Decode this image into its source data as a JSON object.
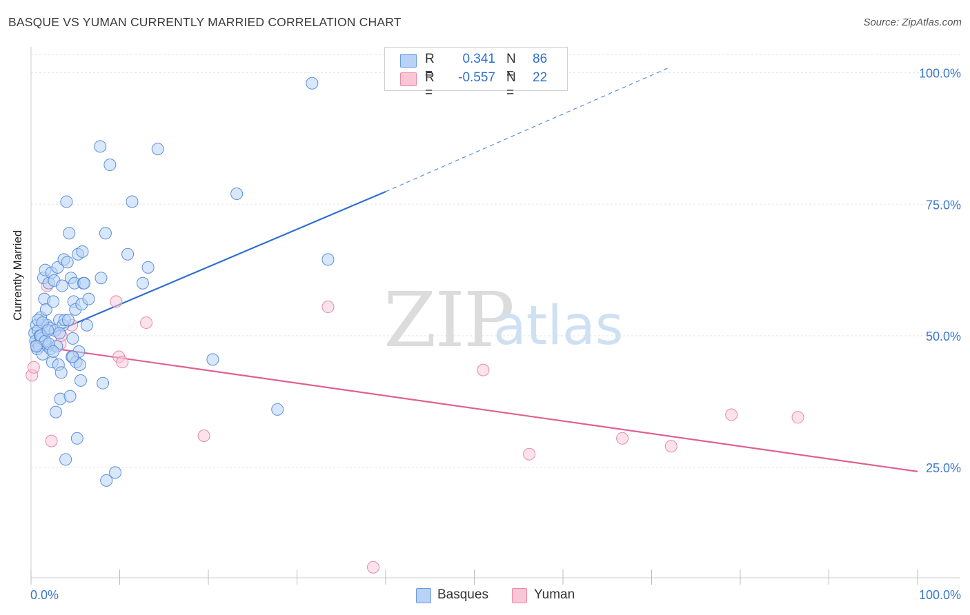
{
  "header": {
    "title": "BASQUE VS YUMAN CURRENTLY MARRIED CORRELATION CHART",
    "source": "Source: ZipAtlas.com"
  },
  "legend": {
    "r_label": "R =",
    "n_label": "N =",
    "series": [
      {
        "name": "Basques",
        "r": "0.341",
        "n": "86",
        "fill": "#b8d3f5",
        "stroke": "#6a9be0"
      },
      {
        "name": "Yuman",
        "r": "-0.557",
        "n": "22",
        "fill": "#f9c6d6",
        "stroke": "#e889a8"
      }
    ]
  },
  "watermark": {
    "zip": "ZIP",
    "atlas": "atlas"
  },
  "chart_data": {
    "type": "scatter",
    "title": "BASQUE VS YUMAN CURRENTLY MARRIED CORRELATION CHART",
    "xlabel": "",
    "ylabel": "Currently Married",
    "xlim": [
      0,
      100
    ],
    "ylim": [
      4,
      104
    ],
    "x_tick_labels": [
      "0.0%",
      "100.0%"
    ],
    "y_ticks": [
      25,
      50,
      75,
      100
    ],
    "y_tick_labels": [
      "25.0%",
      "50.0%",
      "75.0%",
      "100.0%"
    ],
    "grid": true,
    "colors": {
      "basques": "#2f6fd0",
      "yuman": "#e0608f",
      "tick_text": "#3a78d0"
    },
    "series": [
      {
        "name": "Basques",
        "trend": {
          "x1": 0,
          "y1": 48.8,
          "x2": 40,
          "y2": 77.4,
          "dash_to_x": 72,
          "dash_to_y": 101
        },
        "points": [
          [
            0.4,
            50.5
          ],
          [
            0.5,
            49
          ],
          [
            0.6,
            52
          ],
          [
            0.7,
            47.5
          ],
          [
            0.8,
            51
          ],
          [
            0.9,
            48
          ],
          [
            1.0,
            50
          ],
          [
            1.1,
            53.5
          ],
          [
            1.2,
            49.5
          ],
          [
            1.3,
            46.5
          ],
          [
            1.4,
            61
          ],
          [
            1.5,
            57
          ],
          [
            1.6,
            62.5
          ],
          [
            1.7,
            55
          ],
          [
            1.8,
            52
          ],
          [
            1.9,
            48
          ],
          [
            2.0,
            60
          ],
          [
            2.1,
            51.5
          ],
          [
            2.2,
            47.5
          ],
          [
            2.3,
            62
          ],
          [
            2.4,
            45
          ],
          [
            2.5,
            56.5
          ],
          [
            2.6,
            60.5
          ],
          [
            2.7,
            51
          ],
          [
            2.8,
            35.5
          ],
          [
            2.9,
            48
          ],
          [
            3.0,
            63
          ],
          [
            3.1,
            44.5
          ],
          [
            3.2,
            53
          ],
          [
            3.3,
            38
          ],
          [
            3.4,
            43
          ],
          [
            3.5,
            59.5
          ],
          [
            3.6,
            52
          ],
          [
            3.7,
            64.5
          ],
          [
            3.8,
            53
          ],
          [
            3.9,
            26.5
          ],
          [
            4.0,
            75.5
          ],
          [
            4.1,
            64
          ],
          [
            4.2,
            53
          ],
          [
            4.3,
            69.5
          ],
          [
            4.4,
            38.5
          ],
          [
            4.5,
            61
          ],
          [
            4.6,
            46
          ],
          [
            4.7,
            49.5
          ],
          [
            4.8,
            56.5
          ],
          [
            4.9,
            60
          ],
          [
            5.0,
            55
          ],
          [
            5.1,
            45
          ],
          [
            5.2,
            30.5
          ],
          [
            5.3,
            65.5
          ],
          [
            5.4,
            47
          ],
          [
            5.5,
            44.5
          ],
          [
            5.6,
            41.5
          ],
          [
            5.7,
            56
          ],
          [
            5.8,
            66
          ],
          [
            5.9,
            60
          ],
          [
            6.0,
            60
          ],
          [
            6.3,
            52
          ],
          [
            6.5,
            57
          ],
          [
            7.8,
            86
          ],
          [
            7.9,
            61
          ],
          [
            8.1,
            41
          ],
          [
            8.4,
            69.5
          ],
          [
            8.5,
            22.5
          ],
          [
            8.9,
            82.5
          ],
          [
            9.5,
            24
          ],
          [
            10.9,
            65.5
          ],
          [
            11.4,
            75.5
          ],
          [
            12.6,
            60
          ],
          [
            13.2,
            63
          ],
          [
            14.3,
            85.5
          ],
          [
            20.5,
            45.5
          ],
          [
            23.2,
            77
          ],
          [
            27.8,
            36
          ],
          [
            31.7,
            98
          ],
          [
            33.5,
            64.5
          ],
          [
            1.1,
            50
          ],
          [
            1.6,
            49
          ],
          [
            2.0,
            48.5
          ],
          [
            0.8,
            53
          ],
          [
            1.3,
            52.5
          ],
          [
            2.5,
            47
          ],
          [
            1.9,
            51
          ],
          [
            3.2,
            50.5
          ],
          [
            0.6,
            48
          ],
          [
            4.7,
            46
          ]
        ]
      },
      {
        "name": "Yuman",
        "trend": {
          "x1": 0,
          "y1": 48.2,
          "x2": 100,
          "y2": 24.2
        },
        "points": [
          [
            0.1,
            42.5
          ],
          [
            0.3,
            44
          ],
          [
            1.2,
            52
          ],
          [
            1.8,
            59.5
          ],
          [
            2.3,
            30
          ],
          [
            3.3,
            48.5
          ],
          [
            3.4,
            50
          ],
          [
            4.6,
            52
          ],
          [
            9.6,
            56.5
          ],
          [
            9.9,
            46
          ],
          [
            10.3,
            45
          ],
          [
            13.0,
            52.5
          ],
          [
            19.5,
            31
          ],
          [
            33.5,
            55.5
          ],
          [
            38.6,
            6
          ],
          [
            51.0,
            43.5
          ],
          [
            56.2,
            27.5
          ],
          [
            66.7,
            30.5
          ],
          [
            72.2,
            29
          ],
          [
            79.0,
            35
          ],
          [
            86.5,
            34.5
          ],
          [
            0.6,
            48
          ]
        ]
      }
    ]
  }
}
